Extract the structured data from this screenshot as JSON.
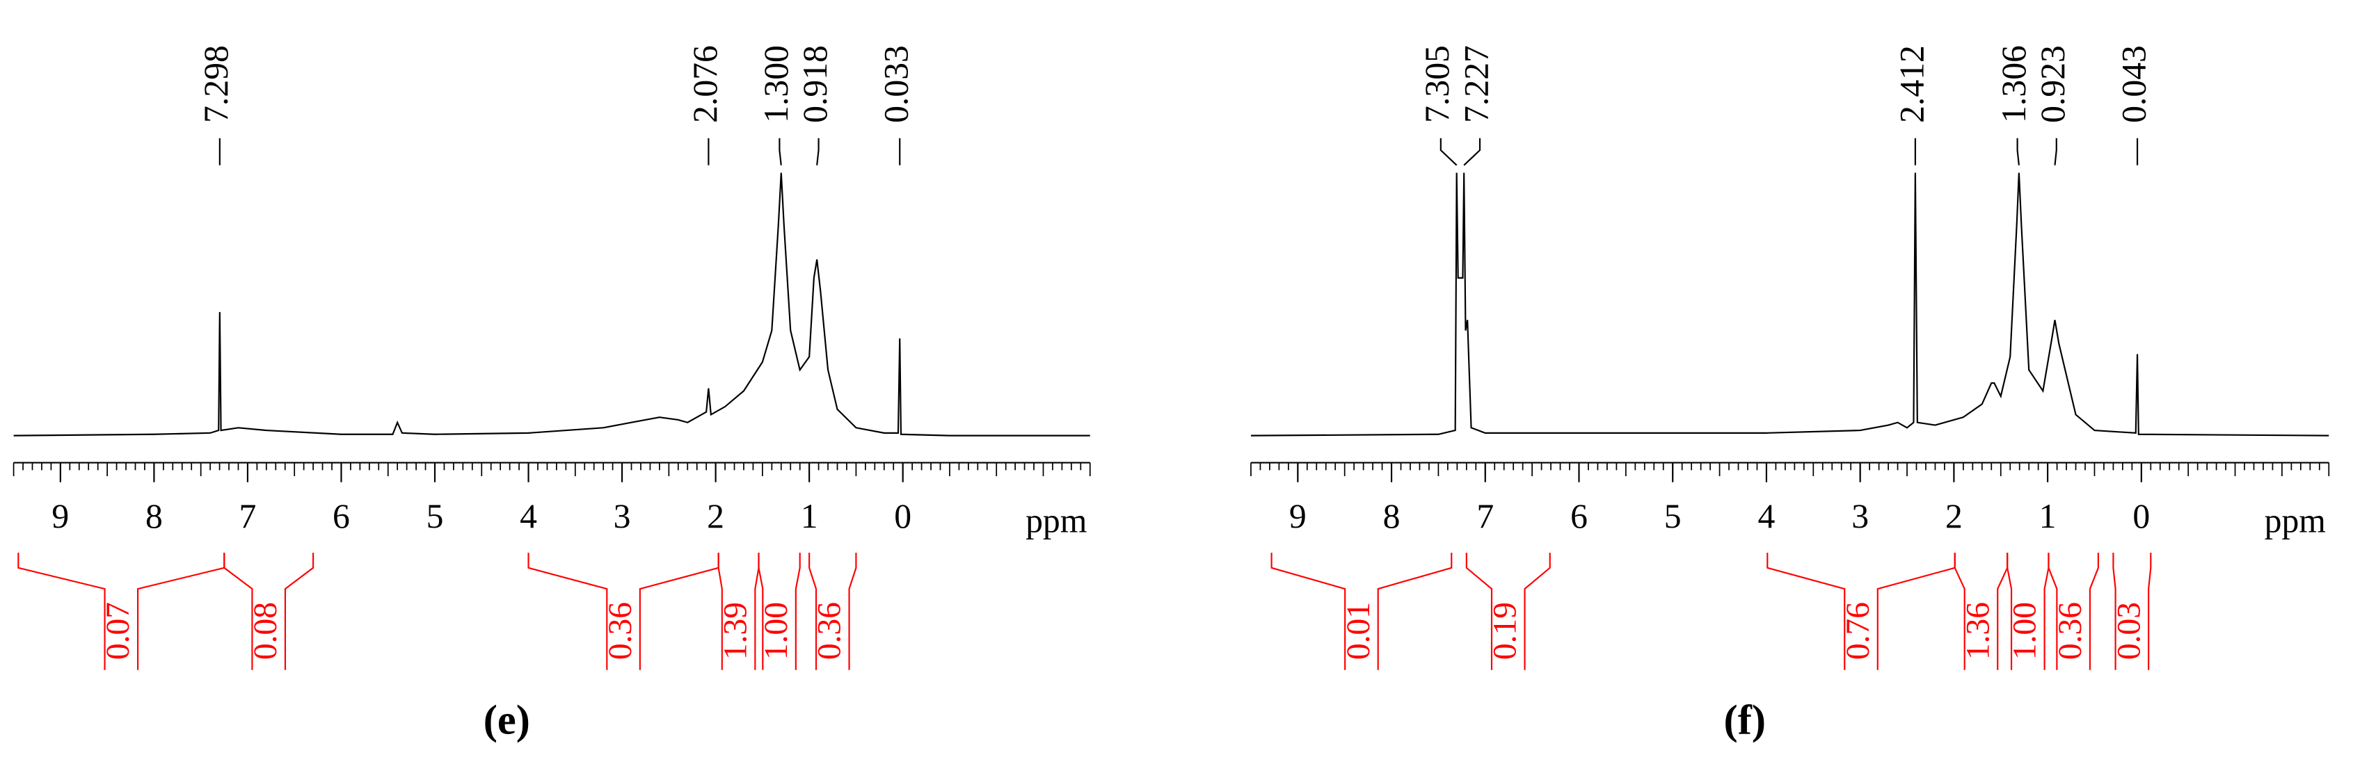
{
  "chart_data": [
    {
      "type": "line",
      "caption": "(e)",
      "xlabel": "ppm",
      "xlim": [
        9.5,
        -2.0
      ],
      "xticks": [
        9,
        8,
        7,
        6,
        5,
        4,
        3,
        2,
        1,
        0
      ],
      "minor_ticks": 10,
      "ylim": [
        -10,
        100
      ],
      "x": [
        9.5,
        8.0,
        7.4,
        7.31,
        7.298,
        7.285,
        7.1,
        6.8,
        6.0,
        5.45,
        5.4,
        5.35,
        5.0,
        4.0,
        3.2,
        2.9,
        2.6,
        2.4,
        2.3,
        2.1,
        2.076,
        2.05,
        1.9,
        1.7,
        1.5,
        1.4,
        1.33,
        1.3,
        1.27,
        1.2,
        1.1,
        1.0,
        0.95,
        0.918,
        0.88,
        0.8,
        0.7,
        0.5,
        0.2,
        0.05,
        0.033,
        0.02,
        -0.5,
        -2.0
      ],
      "series": [
        {
          "color": "#000000",
          "values": [
            0,
            0.5,
            1,
            2,
            47,
            2,
            3,
            2,
            0.5,
            0.5,
            5,
            1,
            0.5,
            1,
            3,
            5,
            7,
            6,
            5,
            9,
            18,
            8,
            11,
            17,
            28,
            40,
            80,
            100,
            80,
            40,
            25,
            30,
            60,
            67,
            55,
            25,
            10,
            3,
            1,
            1,
            37,
            0.5,
            0,
            0
          ]
        }
      ],
      "peak_labels": [
        {
          "value": 7.298,
          "label": "7.298"
        },
        {
          "value": 2.076,
          "label": "2.076"
        },
        {
          "value": 1.3,
          "label": "1.300"
        },
        {
          "value": 0.918,
          "label": "0.918"
        },
        {
          "value": 0.033,
          "label": "0.033"
        }
      ],
      "integral_color": "#ff0000",
      "integrals": [
        {
          "from": 9.45,
          "to": 7.25,
          "value": 0.07,
          "label": "0.07"
        },
        {
          "from": 7.25,
          "to": 6.3,
          "value": 0.08,
          "label": "0.08"
        },
        {
          "from": 4.0,
          "to": 1.97,
          "value": 0.36,
          "label": "0.36"
        },
        {
          "from": 1.97,
          "to": 1.54,
          "value": 1.39,
          "label": "1.39"
        },
        {
          "from": 1.54,
          "to": 1.1,
          "value": 1.0,
          "label": "1.00"
        },
        {
          "from": 1.0,
          "to": 0.5,
          "value": 0.36,
          "label": "0.36"
        }
      ]
    },
    {
      "type": "line",
      "caption": "(f)",
      "xlabel": "ppm",
      "xlim": [
        9.5,
        -2.0
      ],
      "xticks": [
        9,
        8,
        7,
        6,
        5,
        4,
        3,
        2,
        1,
        0
      ],
      "minor_ticks": 10,
      "ylim": [
        -10,
        100
      ],
      "x": [
        9.5,
        7.5,
        7.32,
        7.305,
        7.29,
        7.24,
        7.227,
        7.21,
        7.19,
        7.15,
        7.0,
        4.0,
        3.0,
        2.7,
        2.6,
        2.5,
        2.43,
        2.412,
        2.39,
        2.2,
        1.9,
        1.7,
        1.6,
        1.57,
        1.5,
        1.4,
        1.33,
        1.306,
        1.28,
        1.2,
        1.05,
        0.95,
        0.923,
        0.88,
        0.7,
        0.5,
        0.06,
        0.043,
        0.03,
        -2.0
      ],
      "series": [
        {
          "color": "#000000",
          "values": [
            0,
            0.5,
            2,
            100,
            60,
            60,
            100,
            40,
            44,
            3,
            1,
            1,
            2,
            4,
            5,
            3,
            5,
            100,
            5,
            4,
            7,
            12,
            20,
            20,
            15,
            30,
            80,
            100,
            80,
            25,
            17,
            38,
            44,
            35,
            8,
            2,
            1,
            31,
            0.5,
            0
          ]
        }
      ],
      "peak_labels": [
        {
          "value": 7.305,
          "label": "7.305"
        },
        {
          "value": 7.227,
          "label": "7.227"
        },
        {
          "value": 2.412,
          "label": "2.412"
        },
        {
          "value": 1.306,
          "label": "1.306"
        },
        {
          "value": 0.923,
          "label": "0.923"
        },
        {
          "value": 0.043,
          "label": "0.043"
        }
      ],
      "integral_color": "#ff0000",
      "integrals": [
        {
          "from": 9.28,
          "to": 7.36,
          "value": 0.01,
          "label": "0.01"
        },
        {
          "from": 7.2,
          "to": 6.31,
          "value": 0.19,
          "label": "0.19"
        },
        {
          "from": 3.99,
          "to": 1.99,
          "value": 0.76,
          "label": "0.76"
        },
        {
          "from": 1.99,
          "to": 1.43,
          "value": 1.36,
          "label": "1.36"
        },
        {
          "from": 1.43,
          "to": 0.99,
          "value": 1.0,
          "label": "1.00"
        },
        {
          "from": 0.99,
          "to": 0.46,
          "value": 0.36,
          "label": "0.36"
        },
        {
          "from": 0.3,
          "to": -0.1,
          "value": 0.03,
          "label": "0.03"
        }
      ]
    }
  ]
}
